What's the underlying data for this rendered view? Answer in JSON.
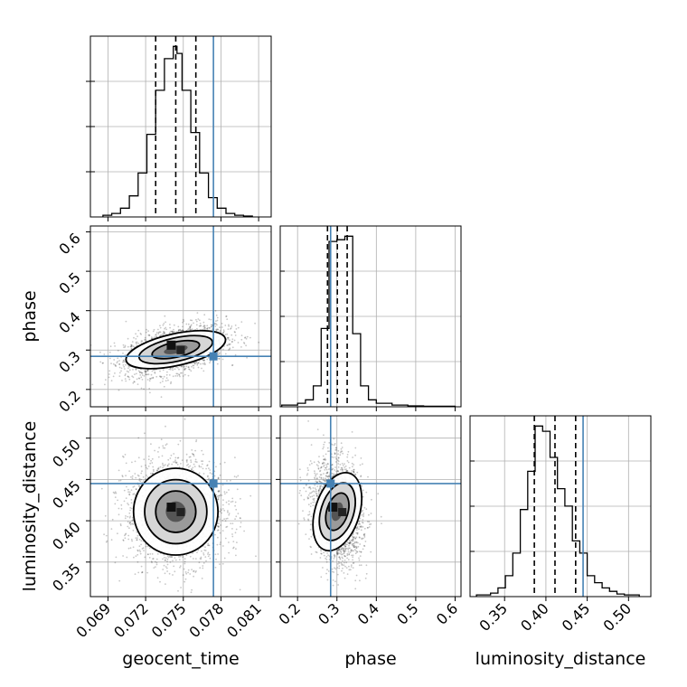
{
  "chart_data": {
    "type": "corner",
    "parameters": [
      "geocent_time",
      "phase",
      "luminosity_distance"
    ],
    "labels": {
      "geocent_time": "geocent_time",
      "phase": "phase",
      "luminosity_distance": "luminosity_distance"
    },
    "ranges": {
      "geocent_time": [
        0.0676,
        0.082
      ],
      "phase": [
        0.156,
        0.615
      ],
      "luminosity_distance": [
        0.3082,
        0.527
      ]
    },
    "ticks": {
      "geocent_time": [
        "0.069",
        "0.072",
        "0.075",
        "0.078",
        "0.081"
      ],
      "phase": [
        "0.2",
        "0.3",
        "0.4",
        "0.5",
        "0.6"
      ],
      "luminosity_distance": [
        "0.35",
        "0.40",
        "0.45",
        "0.50"
      ]
    },
    "truths": {
      "geocent_time": 0.0774,
      "phase": 0.284,
      "luminosity_distance": 0.445
    },
    "truth_color": "#4682b4",
    "quantiles": {
      "geocent_time": [
        0.0728,
        0.0744,
        0.076
      ],
      "phase": [
        0.276,
        0.301,
        0.326
      ],
      "luminosity_distance": [
        0.386,
        0.411,
        0.436
      ]
    },
    "histograms": {
      "geocent_time": {
        "bin_edges": [
          0.0686,
          0.0693,
          0.07,
          0.0707,
          0.0714,
          0.0721,
          0.0728,
          0.0735,
          0.0742,
          0.0745,
          0.0749,
          0.0756,
          0.0763,
          0.077,
          0.0777,
          0.0784,
          0.0791,
          0.0798,
          0.0805
        ],
        "counts": [
          1,
          2,
          5,
          12,
          25,
          47,
          72,
          90,
          97,
          93,
          72,
          48,
          25,
          11,
          5,
          2,
          1,
          0.5
        ]
      },
      "phase": {
        "bin_edges": [
          0.16,
          0.2,
          0.22,
          0.24,
          0.26,
          0.28,
          0.3,
          0.32,
          0.34,
          0.36,
          0.38,
          0.4,
          0.44,
          0.48,
          0.52,
          0.6
        ],
        "counts": [
          1,
          2,
          4,
          12,
          45,
          95,
          96,
          98,
          42,
          12,
          4,
          2,
          1,
          0.5,
          0.3
        ]
      },
      "luminosity_distance": {
        "bin_edges": [
          0.316,
          0.333,
          0.342,
          0.351,
          0.36,
          0.369,
          0.378,
          0.387,
          0.396,
          0.405,
          0.414,
          0.423,
          0.432,
          0.441,
          0.45,
          0.459,
          0.468,
          0.477,
          0.486,
          0.495,
          0.513
        ],
        "counts": [
          1,
          2,
          5,
          12,
          25,
          50,
          72,
          98,
          95,
          80,
          62,
          52,
          32,
          25,
          12,
          8,
          5,
          3,
          1.5,
          1
        ]
      }
    },
    "grid": true
  }
}
